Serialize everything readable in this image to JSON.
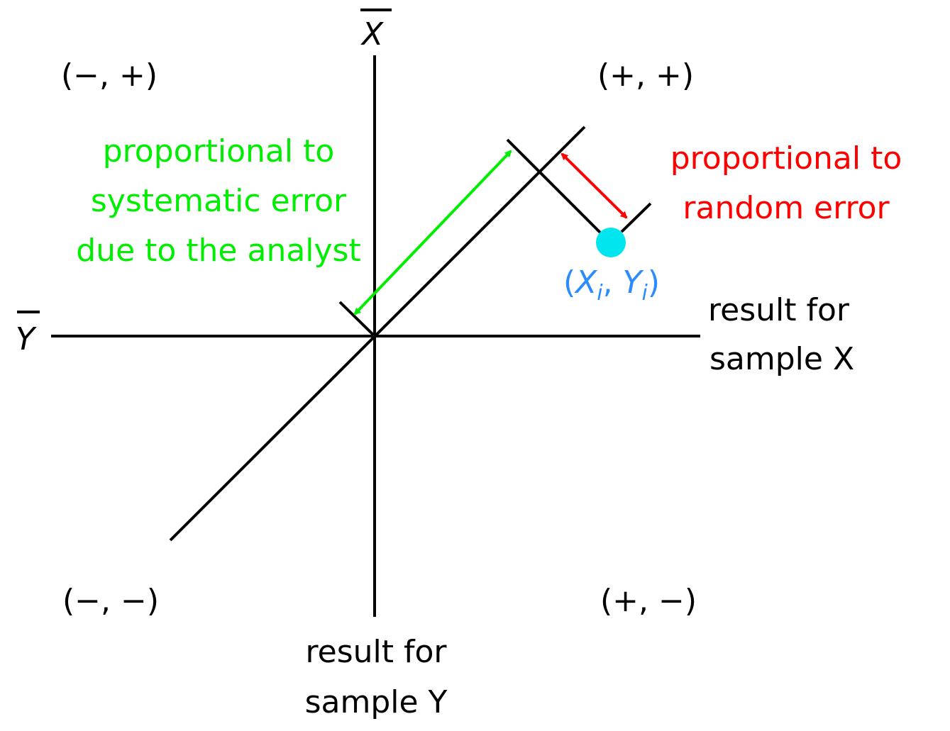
{
  "colors": {
    "axes": "#000000",
    "systematic": "#00ee00",
    "random": "#ff0000",
    "point": "#00e5ee",
    "point_label": "#2a8cff"
  },
  "axis_labels": {
    "x_bar": "X",
    "y_bar": "Y",
    "x_axis": [
      "result for",
      "sample X"
    ],
    "y_axis": [
      "result for",
      "sample Y"
    ]
  },
  "quadrants": {
    "top_left": "(−, +)",
    "top_right": "(+, +)",
    "bottom_left": "(−, −)",
    "bottom_right": "(+, −)"
  },
  "annotations": {
    "systematic": [
      "proportional to",
      "systematic error",
      "due to the analyst"
    ],
    "random": [
      "proportional to",
      "random error"
    ]
  },
  "point": {
    "label_x": "X",
    "label_y": "Y",
    "subscript": "i"
  }
}
